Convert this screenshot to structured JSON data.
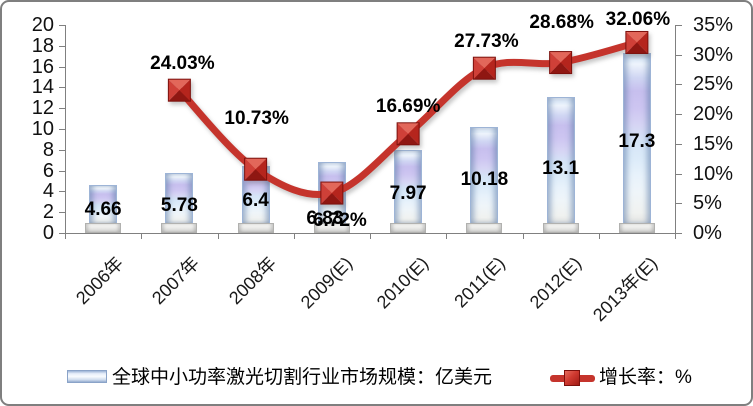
{
  "frame": {
    "bg": "#ffffff",
    "border_color": "#7f7f7f"
  },
  "chart_data": {
    "type": "bar+line",
    "categories": [
      "2006年",
      "2007年",
      "2008年",
      "2009(E)",
      "2010(E)",
      "2011(E)",
      "2012(E)",
      "2013年(E)"
    ],
    "series": [
      {
        "name": "全球中小功率激光切割行业市场规模：亿美元",
        "type": "bar",
        "axis": "left",
        "values": [
          4.66,
          5.78,
          6.4,
          6.83,
          7.97,
          10.18,
          13.1,
          17.3
        ],
        "labels": [
          "4.66",
          "5.78",
          "6.4",
          "6.83",
          "7.97",
          "10.18",
          "13.1",
          "17.3"
        ]
      },
      {
        "name": "增长率：%",
        "type": "line",
        "axis": "right",
        "values": [
          null,
          24.03,
          10.73,
          6.72,
          16.69,
          27.73,
          28.68,
          32.06
        ],
        "labels": [
          null,
          "24.03%",
          "10.73%",
          "6.72%",
          "16.69%",
          "27.73%",
          "28.68%",
          "32.06%"
        ]
      }
    ],
    "left_axis": {
      "min": 0,
      "max": 20,
      "step": 2,
      "tick_labels": [
        "20",
        "18",
        "16",
        "14",
        "12",
        "10",
        "8",
        "6",
        "4",
        "2",
        "0"
      ]
    },
    "right_axis": {
      "min": 0,
      "max": 35,
      "step": 5,
      "tick_labels": [
        "35%",
        "30%",
        "25%",
        "20%",
        "15%",
        "10%",
        "5%",
        "0%"
      ]
    },
    "grid": "off",
    "legend_position": "bottom",
    "colors": {
      "line": "#c5342c",
      "marker_light": "#e2675a",
      "marker_dark": "#8f1712",
      "bar_border": "#9db4d6",
      "bar_lavender": "#c7bfee",
      "axis": "#808080",
      "text": "#000000"
    },
    "layout_hints": {
      "bar_label_dx": [
        0,
        0,
        0,
        -7,
        0,
        0,
        0,
        0
      ],
      "bar_label_dy": [
        1,
        3,
        1,
        22,
        2,
        0,
        4,
        -1
      ],
      "line_label_dx": [
        0,
        3,
        1,
        8,
        0,
        2,
        1,
        1
      ],
      "line_label_dy": [
        0,
        -26,
        -50,
        28,
        -27,
        -26,
        -40,
        -22
      ]
    }
  }
}
